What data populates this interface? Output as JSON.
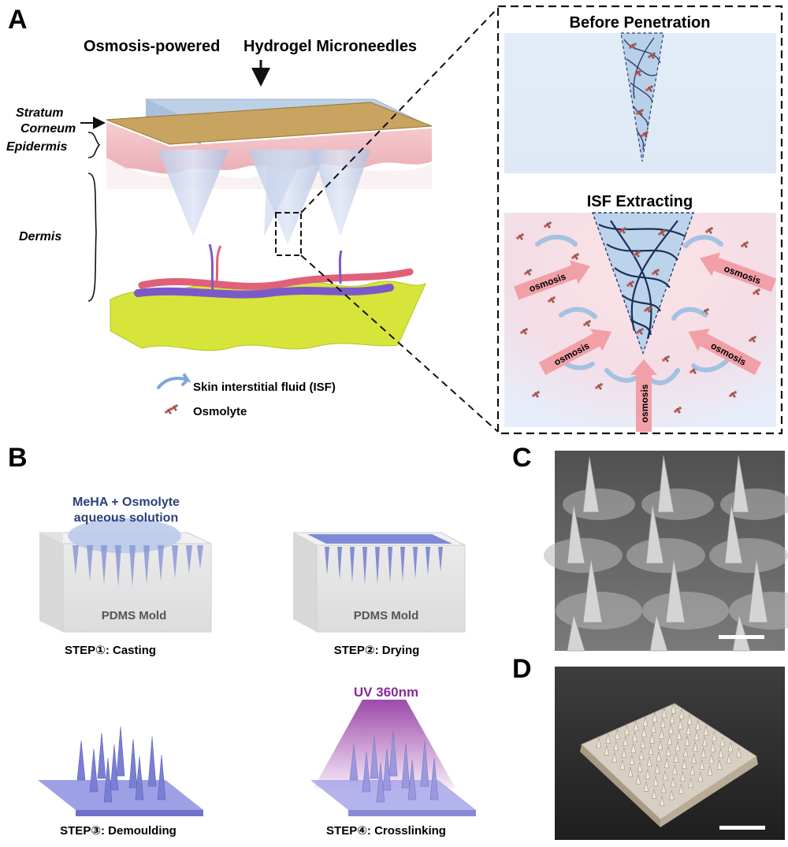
{
  "panel_letters": {
    "a": "A",
    "b": "B",
    "c": "C",
    "d": "D"
  },
  "panel_a": {
    "title_left": "Osmosis-powered",
    "title_right": "Hydrogel Microneedles",
    "skin_layers": {
      "stratum": "Stratum",
      "corneum": "Corneum",
      "epidermis": "Epidermis",
      "dermis": "Dermis"
    },
    "legend": {
      "isf": "Skin interstitial fluid (ISF)",
      "osmolyte": "Osmolyte"
    },
    "inset_top_title": "Before Penetration",
    "inset_bottom_title": "ISF Extracting",
    "osmosis_label": "osmosis"
  },
  "panel_b": {
    "solution_line1": "MeHA + Osmolyte",
    "solution_line2": "aqueous solution",
    "mold_label": "PDMS Mold",
    "uv_label": "UV 360nm",
    "step1": "STEP①: Casting",
    "step2": "STEP②: Drying",
    "step3": "STEP③: Demoulding",
    "step4": "STEP④: Crosslinking"
  },
  "colors": {
    "hydrogel_blue": "#a9c6e6",
    "needle_fill": "#c9dcf0",
    "skin_pink": "#efb7be",
    "stratum_gold": "#c9a461",
    "base_yellow": "#d7e53a",
    "vessel_red": "#e0607a",
    "vessel_purple": "#7a5ac8",
    "osmosis_arrow": "#f2a0a8",
    "uv_purple": "#8a2a9a",
    "patch_purple": "#8c8fe0",
    "sem_gray": "#6f6f6f"
  }
}
